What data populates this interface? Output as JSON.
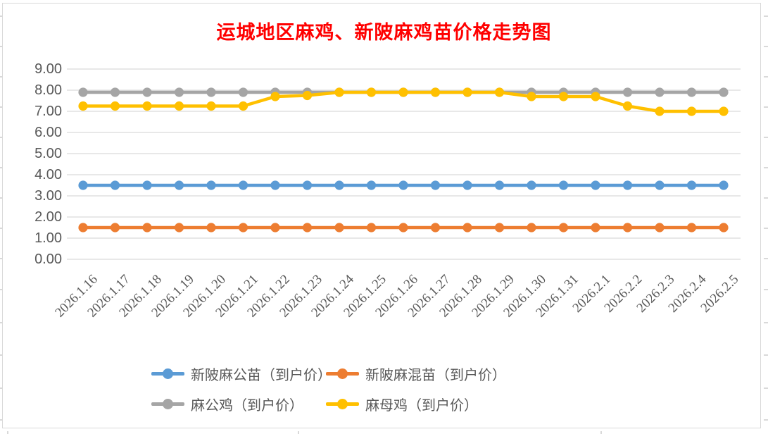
{
  "title": {
    "text": "运城地区麻鸡、新陂麻鸡苗价格走势图",
    "color": "#FF0000"
  },
  "chart_data": {
    "type": "line",
    "title": "运城地区麻鸡、新陂麻鸡苗价格走势图",
    "categories": [
      "2026.1.16",
      "2026.1.17",
      "2026.1.18",
      "2026.1.19",
      "2026.1.20",
      "2026.1.21",
      "2026.1.22",
      "2026.1.23",
      "2026.1.24",
      "2026.1.25",
      "2026.1.26",
      "2026.1.27",
      "2026.1.28",
      "2026.1.29",
      "2026.1.30",
      "2026.1.31",
      "2026.2.1",
      "2026.2.2",
      "2026.2.3",
      "2026.2.4",
      "2026.2.5"
    ],
    "series": [
      {
        "name": "新陂麻公苗（到户价）",
        "color": "#5B9BD5",
        "values": [
          3.5,
          3.5,
          3.5,
          3.5,
          3.5,
          3.5,
          3.5,
          3.5,
          3.5,
          3.5,
          3.5,
          3.5,
          3.5,
          3.5,
          3.5,
          3.5,
          3.5,
          3.5,
          3.5,
          3.5,
          3.5
        ]
      },
      {
        "name": "新陂麻混苗（到户价）",
        "color": "#ED7D31",
        "values": [
          1.5,
          1.5,
          1.5,
          1.5,
          1.5,
          1.5,
          1.5,
          1.5,
          1.5,
          1.5,
          1.5,
          1.5,
          1.5,
          1.5,
          1.5,
          1.5,
          1.5,
          1.5,
          1.5,
          1.5,
          1.5
        ]
      },
      {
        "name": "麻公鸡（到户价）",
        "color": "#A5A5A5",
        "values": [
          7.9,
          7.9,
          7.9,
          7.9,
          7.9,
          7.9,
          7.9,
          7.9,
          7.9,
          7.9,
          7.9,
          7.9,
          7.9,
          7.9,
          7.9,
          7.9,
          7.9,
          7.9,
          7.9,
          7.9,
          7.9
        ]
      },
      {
        "name": "麻母鸡（到户价）",
        "color": "#FFC000",
        "values": [
          7.25,
          7.25,
          7.25,
          7.25,
          7.25,
          7.25,
          7.7,
          7.75,
          7.9,
          7.9,
          7.9,
          7.9,
          7.9,
          7.9,
          7.7,
          7.7,
          7.7,
          7.25,
          7.0,
          7.0,
          7.0
        ]
      }
    ],
    "xlabel": "",
    "ylabel": "",
    "ylim": [
      0,
      9
    ],
    "ytick_labels": [
      "0.00",
      "1.00",
      "2.00",
      "3.00",
      "4.00",
      "5.00",
      "6.00",
      "7.00",
      "8.00",
      "9.00"
    ],
    "grid": true,
    "legend_position": "bottom",
    "marker": "circle",
    "axis_label_color": "#595959",
    "gridline_color": "#D9D9D9"
  }
}
